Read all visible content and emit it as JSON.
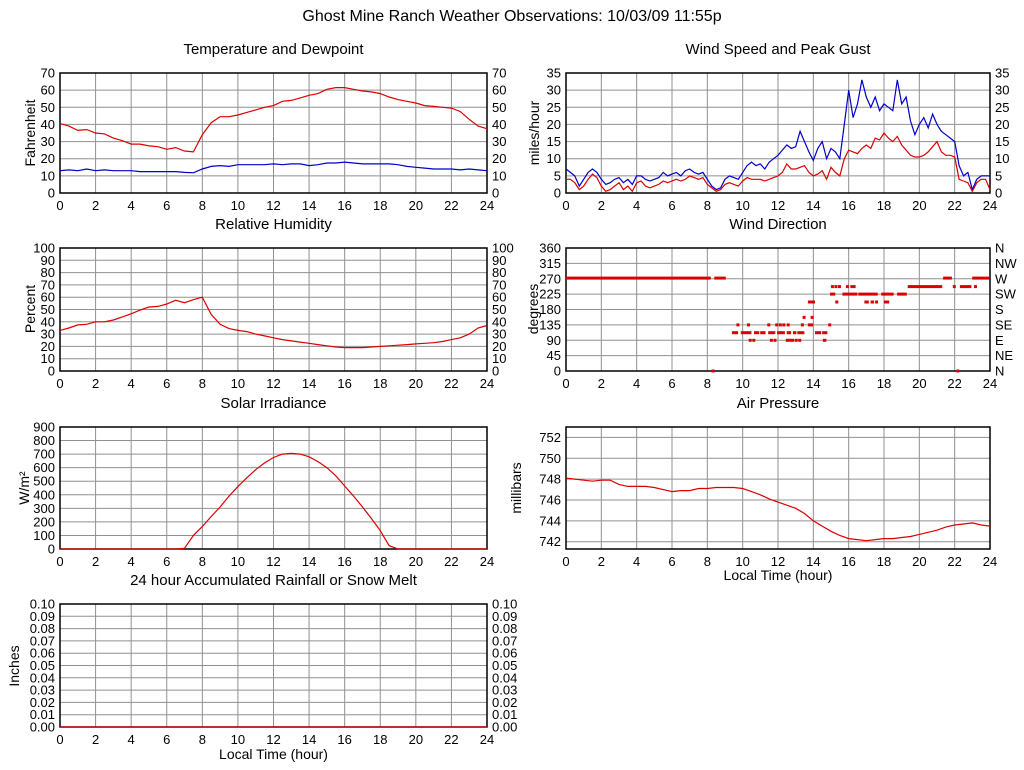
{
  "page": {
    "title": "Ghost Mine Ranch Weather Observations: 10/03/09 11:55p"
  },
  "colors": {
    "red": "#dd0000",
    "blue": "#0000cc",
    "grid": "#909090",
    "axis": "#000000"
  },
  "chart_data": [
    {
      "type": "line",
      "title": "Temperature and Dewpoint",
      "ylabel": "Fahrenheit",
      "xlabel": "",
      "ylim": [
        0,
        70
      ],
      "yticks": [
        0,
        10,
        20,
        30,
        40,
        50,
        60,
        70
      ],
      "ytick_labels": [
        "0",
        "10",
        "20",
        "30",
        "40",
        "50",
        "60",
        "70"
      ],
      "right_labels": [
        "0",
        "10",
        "20",
        "30",
        "40",
        "50",
        "60",
        "70"
      ],
      "xlim": [
        0,
        24
      ],
      "xticks": [
        0,
        2,
        4,
        6,
        8,
        10,
        12,
        14,
        16,
        18,
        20,
        22,
        24
      ],
      "x_start": 0,
      "x_step": 0.5,
      "series": [
        {
          "name": "temperature",
          "color": "#dd0000",
          "values": [
            40.5,
            39,
            36.5,
            37,
            35,
            34.5,
            32,
            30.5,
            28.5,
            28.5,
            27.5,
            27,
            25.5,
            26.5,
            24.5,
            24,
            34,
            41,
            44.5,
            44.5,
            45.5,
            47,
            48.5,
            50,
            51,
            53.5,
            54,
            55.5,
            57,
            58,
            60.5,
            61.5,
            61.5,
            60.5,
            59.5,
            59,
            58,
            56,
            54.5,
            53.5,
            52.5,
            51,
            50.5,
            50,
            49.5,
            47.5,
            43,
            39,
            37.5
          ]
        },
        {
          "name": "dewpoint",
          "color": "#0000cc",
          "values": [
            13,
            13.5,
            13,
            14,
            13,
            13.5,
            13,
            13,
            13,
            12.5,
            12.5,
            12.5,
            12.5,
            12.5,
            12,
            11.8,
            14,
            15.5,
            16,
            15.5,
            16.5,
            16.5,
            16.5,
            16.5,
            17,
            16.5,
            17,
            17,
            16,
            16.5,
            17.5,
            17.5,
            18,
            17.5,
            17,
            17,
            17,
            17,
            16.5,
            15.5,
            15,
            14.5,
            14,
            14,
            14,
            13.5,
            14,
            13.5,
            13
          ]
        }
      ]
    },
    {
      "type": "line",
      "title": "Wind Speed and Peak Gust",
      "ylabel": "miles/hour",
      "xlabel": "",
      "ylim": [
        0,
        35
      ],
      "yticks": [
        0,
        5,
        10,
        15,
        20,
        25,
        30,
        35
      ],
      "ytick_labels": [
        "0",
        "5",
        "10",
        "15",
        "20",
        "25",
        "30",
        "35"
      ],
      "right_labels": [
        "0",
        "5",
        "10",
        "15",
        "20",
        "25",
        "30",
        "35"
      ],
      "xlim": [
        0,
        24
      ],
      "xticks": [
        0,
        2,
        4,
        6,
        8,
        10,
        12,
        14,
        16,
        18,
        20,
        22,
        24
      ],
      "x_start": 0,
      "x_step": 0.25,
      "series": [
        {
          "name": "peak-gust",
          "color": "#0000cc",
          "values": [
            7,
            6,
            5,
            2,
            4,
            6,
            7,
            6,
            4,
            2.5,
            3,
            4,
            4.5,
            3,
            4,
            2.5,
            5,
            5,
            4,
            3.5,
            4,
            4.5,
            6,
            5,
            5.5,
            6,
            5,
            6.5,
            7,
            6,
            5.5,
            6,
            4,
            2,
            1,
            1.5,
            4,
            5,
            4.5,
            4,
            6,
            8,
            9,
            8,
            8.5,
            7,
            9,
            10,
            11,
            12.5,
            14,
            13,
            13.5,
            18,
            15,
            12,
            9.5,
            13,
            15,
            10,
            13,
            12,
            10,
            20,
            30,
            22,
            26,
            33,
            28,
            25,
            28,
            24,
            26,
            25,
            24,
            33,
            26,
            28,
            21,
            17,
            20,
            22,
            19,
            23,
            20,
            18,
            17,
            16,
            15,
            8,
            5,
            6,
            1,
            4,
            5,
            5,
            5
          ]
        },
        {
          "name": "wind-speed",
          "color": "#dd0000",
          "values": [
            4,
            4,
            3,
            1,
            2,
            4,
            5.5,
            4.5,
            2,
            0.5,
            1,
            2,
            3,
            1,
            2,
            0.5,
            3,
            3.5,
            2,
            1.5,
            2,
            2.5,
            3.5,
            3,
            3.5,
            4,
            3.5,
            4,
            5,
            4.5,
            4,
            4.5,
            2.5,
            1.5,
            0.5,
            1,
            2.5,
            3,
            2.5,
            2,
            3.5,
            4.5,
            4,
            4,
            4,
            3.5,
            4,
            4.5,
            5,
            6,
            8.5,
            7,
            7,
            7.5,
            8,
            6,
            5,
            5.5,
            6.5,
            4,
            7.5,
            6,
            5,
            10,
            12.5,
            12,
            11.5,
            13,
            14,
            13,
            16,
            15.5,
            17.5,
            16,
            15,
            16.5,
            14,
            12.5,
            11,
            10.5,
            10.5,
            11,
            12,
            13.5,
            15,
            12,
            11,
            11,
            10.5,
            4,
            3.5,
            3,
            0.5,
            3,
            4,
            4,
            1
          ]
        }
      ]
    },
    {
      "type": "line",
      "title": "Relative Humidity",
      "ylabel": "Percent",
      "xlabel": "",
      "ylim": [
        0,
        100
      ],
      "yticks": [
        0,
        10,
        20,
        30,
        40,
        50,
        60,
        70,
        80,
        90,
        100
      ],
      "ytick_labels": [
        "0",
        "10",
        "20",
        "30",
        "40",
        "50",
        "60",
        "70",
        "80",
        "90",
        "100"
      ],
      "right_labels": [
        "0",
        "10",
        "20",
        "30",
        "40",
        "50",
        "60",
        "70",
        "80",
        "90",
        "100"
      ],
      "xlim": [
        0,
        24
      ],
      "xticks": [
        0,
        2,
        4,
        6,
        8,
        10,
        12,
        14,
        16,
        18,
        20,
        22,
        24
      ],
      "x_start": 0,
      "x_step": 0.5,
      "series": [
        {
          "name": "relative-humidity",
          "color": "#dd0000",
          "values": [
            33,
            35,
            37.5,
            38,
            40,
            40,
            41.5,
            44,
            46.5,
            49.5,
            52,
            52.5,
            54.5,
            57.5,
            55.5,
            58,
            60,
            46,
            38,
            34.5,
            33,
            32,
            30,
            28.5,
            27,
            25.5,
            24.5,
            23.5,
            22.5,
            21.5,
            20.5,
            19.5,
            19,
            19,
            19,
            19.5,
            20,
            20.5,
            21,
            21.5,
            22,
            22.5,
            23,
            24,
            25.5,
            27,
            30,
            35,
            37
          ]
        }
      ]
    },
    {
      "type": "scatter-segments",
      "title": "Wind Direction",
      "ylabel": "degrees",
      "xlabel": "",
      "ylim": [
        0,
        360
      ],
      "yticks": [
        0,
        45,
        90,
        135,
        180,
        225,
        270,
        315,
        360
      ],
      "ytick_labels": [
        "0",
        "45",
        "90",
        "135",
        "180",
        "225",
        "270",
        "315",
        "360"
      ],
      "right_labels": [
        "N",
        "NE",
        "E",
        "SE",
        "S",
        "SW",
        "W",
        "NW",
        "N"
      ],
      "xlim": [
        0,
        24
      ],
      "xticks": [
        0,
        2,
        4,
        6,
        8,
        10,
        12,
        14,
        16,
        18,
        20,
        22,
        24
      ],
      "marker_color": "#dd0000",
      "segments": [
        [
          272,
          0,
          8.25
        ],
        [
          0,
          8.3,
          8.4
        ],
        [
          272,
          8.45,
          9.1
        ],
        [
          112,
          9.45,
          9.8
        ],
        [
          112,
          9.95,
          10.55
        ],
        [
          112,
          10.7,
          11.0
        ],
        [
          112,
          11.05,
          11.35
        ],
        [
          112,
          11.5,
          11.9
        ],
        [
          112,
          12.0,
          12.45
        ],
        [
          112,
          12.55,
          12.8
        ],
        [
          112,
          12.9,
          13.1
        ],
        [
          112,
          13.15,
          13.55
        ],
        [
          112,
          14.15,
          14.5
        ],
        [
          112,
          14.55,
          14.85
        ],
        [
          90,
          10.4,
          10.45
        ],
        [
          90,
          10.6,
          10.65
        ],
        [
          90,
          11.6,
          11.65
        ],
        [
          90,
          11.8,
          11.85
        ],
        [
          90,
          12.5,
          12.55
        ],
        [
          90,
          12.65,
          12.7
        ],
        [
          90,
          12.8,
          12.85
        ],
        [
          90,
          13.0,
          13.05
        ],
        [
          90,
          13.2,
          13.25
        ],
        [
          90,
          14.6,
          14.8
        ],
        [
          135,
          9.7,
          9.75
        ],
        [
          135,
          10.3,
          10.35
        ],
        [
          135,
          11.45,
          11.55
        ],
        [
          135,
          11.9,
          11.95
        ],
        [
          135,
          12.1,
          12.15
        ],
        [
          135,
          12.3,
          12.4
        ],
        [
          135,
          12.55,
          12.6
        ],
        [
          135,
          13.35,
          13.5
        ],
        [
          135,
          13.75,
          14.05
        ],
        [
          135,
          14.9,
          14.95
        ],
        [
          157,
          13.45,
          13.5
        ],
        [
          157,
          13.9,
          13.95
        ],
        [
          202,
          13.75,
          14.15
        ],
        [
          202,
          15.3,
          15.4
        ],
        [
          202,
          16.95,
          17.2
        ],
        [
          202,
          17.3,
          17.5
        ],
        [
          202,
          17.55,
          17.7
        ],
        [
          202,
          18.05,
          18.35
        ],
        [
          225,
          15.0,
          15.3
        ],
        [
          225,
          15.7,
          16.55
        ],
        [
          225,
          16.6,
          17.7
        ],
        [
          225,
          17.9,
          18.6
        ],
        [
          225,
          18.8,
          19.35
        ],
        [
          247,
          15.05,
          15.1
        ],
        [
          247,
          15.25,
          15.3
        ],
        [
          247,
          15.45,
          15.5
        ],
        [
          247,
          15.9,
          15.95
        ],
        [
          247,
          16.15,
          16.45
        ],
        [
          247,
          19.4,
          21.35
        ],
        [
          247,
          21.95,
          22.1
        ],
        [
          247,
          22.35,
          23.0
        ],
        [
          247,
          23.15,
          23.2
        ],
        [
          272,
          21.4,
          21.9
        ],
        [
          272,
          23.05,
          24.0
        ],
        [
          0,
          22.15,
          22.25
        ]
      ]
    },
    {
      "type": "line",
      "title": "Solar Irradiance",
      "ylabel": "W/m²",
      "xlabel": "",
      "ylim": [
        0,
        900
      ],
      "yticks": [
        0,
        100,
        200,
        300,
        400,
        500,
        600,
        700,
        800,
        900
      ],
      "ytick_labels": [
        "0",
        "100",
        "200",
        "300",
        "400",
        "500",
        "600",
        "700",
        "800",
        "900"
      ],
      "right_labels": null,
      "xlim": [
        0,
        24
      ],
      "xticks": [
        0,
        2,
        4,
        6,
        8,
        10,
        12,
        14,
        16,
        18,
        20,
        22,
        24
      ],
      "x_start": 0,
      "x_step": 0.5,
      "series": [
        {
          "name": "solar-irradiance",
          "color": "#dd0000",
          "values": [
            0,
            0,
            0,
            0,
            0,
            0,
            0,
            0,
            0,
            0,
            0,
            0,
            0,
            0,
            5,
            100,
            165,
            240,
            310,
            390,
            460,
            525,
            585,
            635,
            675,
            700,
            705,
            700,
            680,
            645,
            600,
            540,
            465,
            390,
            310,
            225,
            135,
            25,
            0,
            0,
            0,
            0,
            0,
            0,
            0,
            0,
            0,
            0,
            0
          ]
        }
      ]
    },
    {
      "type": "line",
      "title": "Air Pressure",
      "ylabel": "millibars",
      "xlabel": "Local Time (hour)",
      "ylim": [
        741.3,
        753
      ],
      "yticks": [
        742,
        744,
        746,
        748,
        750,
        752
      ],
      "ytick_labels": [
        "742",
        "744",
        "746",
        "748",
        "750",
        "752"
      ],
      "right_labels": null,
      "xlim": [
        0,
        24
      ],
      "xticks": [
        0,
        2,
        4,
        6,
        8,
        10,
        12,
        14,
        16,
        18,
        20,
        22,
        24
      ],
      "x_start": 0,
      "x_step": 0.5,
      "series": [
        {
          "name": "air-pressure",
          "color": "#dd0000",
          "values": [
            748.1,
            748.0,
            747.9,
            747.8,
            747.9,
            747.9,
            747.5,
            747.3,
            747.3,
            747.3,
            747.2,
            747.0,
            746.8,
            746.9,
            746.9,
            747.1,
            747.1,
            747.2,
            747.2,
            747.2,
            747.1,
            746.8,
            746.5,
            746.1,
            745.8,
            745.5,
            745.2,
            744.7,
            744.0,
            743.5,
            743.0,
            742.6,
            742.3,
            742.2,
            742.1,
            742.2,
            742.3,
            742.3,
            742.4,
            742.5,
            742.7,
            742.9,
            743.1,
            743.4,
            743.6,
            743.7,
            743.8,
            743.6,
            743.5
          ]
        }
      ]
    },
    {
      "type": "line",
      "title": "24 hour Accumulated Rainfall or Snow Melt",
      "ylabel": "Inches",
      "xlabel": "Local Time (hour)",
      "ylim": [
        0,
        0.1
      ],
      "yticks": [
        0,
        0.01,
        0.02,
        0.03,
        0.04,
        0.05,
        0.06,
        0.07,
        0.08,
        0.09,
        0.1
      ],
      "ytick_labels": [
        "0.00",
        "0.01",
        "0.02",
        "0.03",
        "0.04",
        "0.05",
        "0.06",
        "0.07",
        "0.08",
        "0.09",
        "0.10"
      ],
      "right_labels": [
        "0.00",
        "0.01",
        "0.02",
        "0.03",
        "0.04",
        "0.05",
        "0.06",
        "0.07",
        "0.08",
        "0.09",
        "0.10"
      ],
      "xlim": [
        0,
        24
      ],
      "xticks": [
        0,
        2,
        4,
        6,
        8,
        10,
        12,
        14,
        16,
        18,
        20,
        22,
        24
      ],
      "x_start": 0,
      "x_step": 24,
      "series": [
        {
          "name": "rainfall",
          "color": "#dd0000",
          "values": [
            0,
            0
          ]
        }
      ]
    }
  ]
}
